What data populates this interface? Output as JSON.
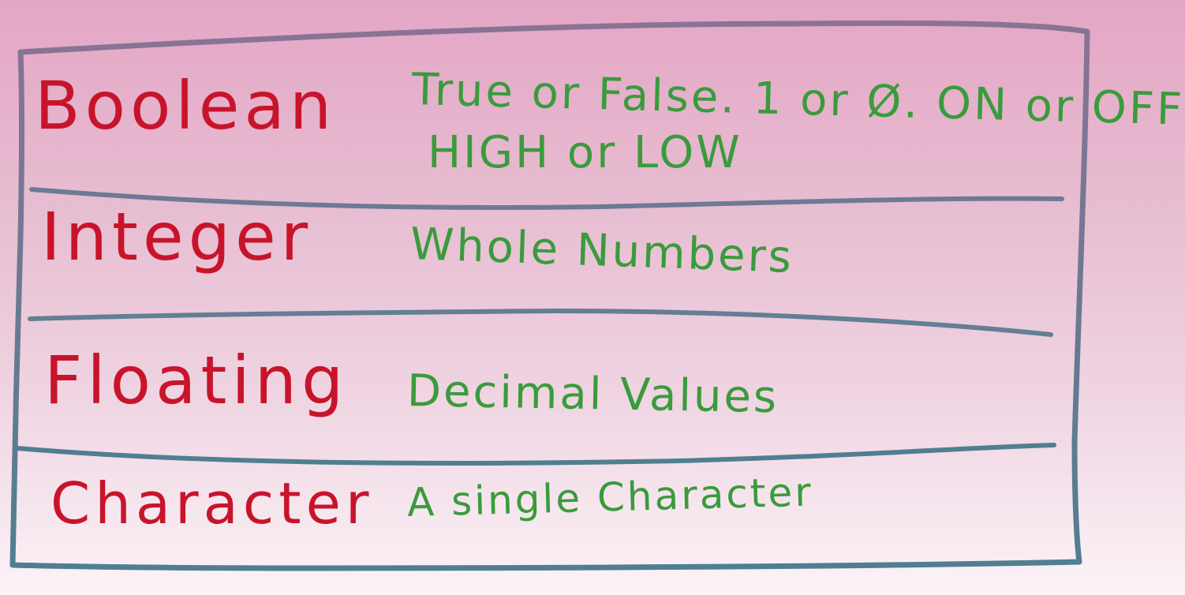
{
  "colors": {
    "border": "#5f7a93",
    "name": "#c8142b",
    "description": "#3a9b3c"
  },
  "rows": [
    {
      "name": "Boolean",
      "description_lines": [
        "True or False. 1 or Ø. ON or OFF",
        "HIGH or LOW"
      ]
    },
    {
      "name": "Integer",
      "description_lines": [
        "Whole Numbers"
      ]
    },
    {
      "name": "Floating",
      "description_lines": [
        "Decimal Values"
      ]
    },
    {
      "name": "Character",
      "description_lines": [
        "A single Character"
      ]
    }
  ]
}
